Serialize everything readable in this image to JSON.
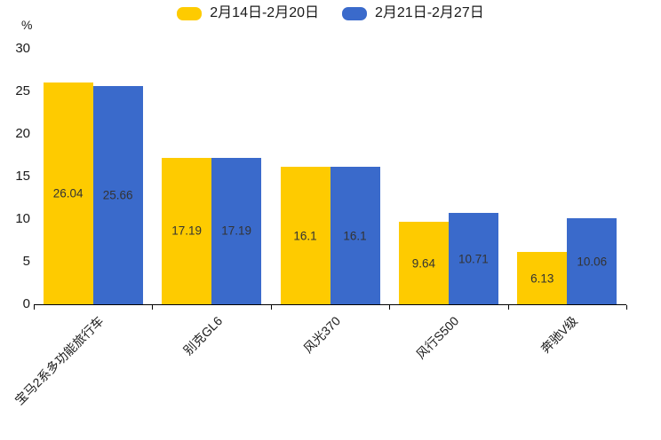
{
  "y_axis": {
    "unit": "%"
  },
  "chart_data": {
    "type": "bar",
    "title": "",
    "xlabel": "",
    "ylabel": "%",
    "categories": [
      "宝马2系多功能旅行车",
      "别克GL6",
      "风光370",
      "风行S500",
      "奔驰V级"
    ],
    "series": [
      {
        "name": "2月14日-2月20日",
        "color": "#FECB00",
        "values": [
          26.04,
          17.19,
          16.1,
          9.64,
          6.13
        ]
      },
      {
        "name": "2月21日-2月27日",
        "color": "#3A6ACB",
        "values": [
          25.66,
          17.19,
          16.1,
          10.71,
          10.06
        ]
      }
    ],
    "ylim": [
      0,
      30
    ],
    "yticks": [
      0,
      5,
      10,
      15,
      20,
      25,
      30
    ],
    "grid": false,
    "legend_position": "top",
    "value_labels": "inside-center",
    "value_label_color": "#333333",
    "axis_color": "#000000",
    "x_label_rotation_deg": -45
  }
}
